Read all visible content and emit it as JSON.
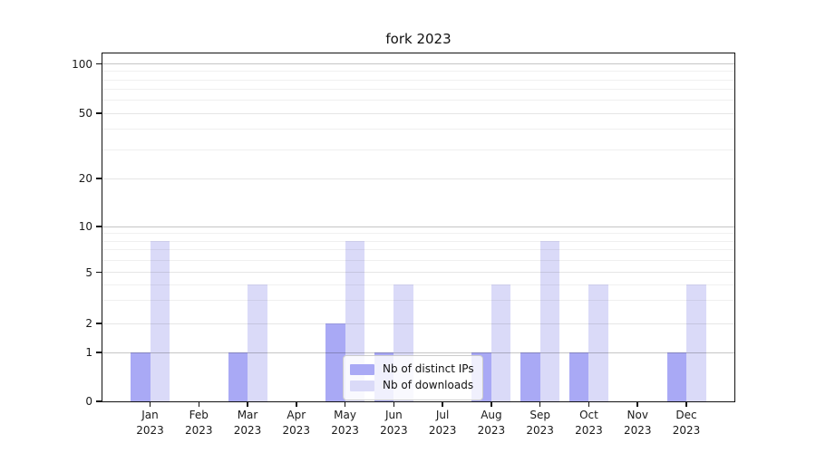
{
  "chart_data": {
    "type": "bar",
    "title": "fork 2023",
    "categories": [
      "Jan",
      "Feb",
      "Mar",
      "Apr",
      "May",
      "Jun",
      "Jul",
      "Aug",
      "Sep",
      "Oct",
      "Nov",
      "Dec"
    ],
    "category_year": "2023",
    "series": [
      {
        "name": "Nb of distinct IPs",
        "color": "#a9a9f5",
        "values": [
          1,
          0,
          1,
          0,
          2,
          1,
          0,
          1,
          1,
          1,
          0,
          1
        ]
      },
      {
        "name": "Nb of downloads",
        "color": "#dadaf8",
        "values": [
          8,
          0,
          4,
          0,
          8,
          4,
          0,
          4,
          8,
          4,
          0,
          4
        ]
      }
    ],
    "y_scale": "symlog",
    "ylim": [
      0,
      100
    ],
    "y_ticks": [
      0,
      1,
      2,
      5,
      10,
      20,
      50,
      100
    ],
    "y_minor_ticks": [
      3,
      4,
      6,
      7,
      8,
      9,
      30,
      40,
      60,
      70,
      80,
      90
    ],
    "grid": true,
    "legend_position": "lower center",
    "colors": {
      "grid_major": "#c5c5c5",
      "grid_mid": "#e6e6e6",
      "grid_minor": "#f0f0f0",
      "axis": "#111111"
    }
  }
}
